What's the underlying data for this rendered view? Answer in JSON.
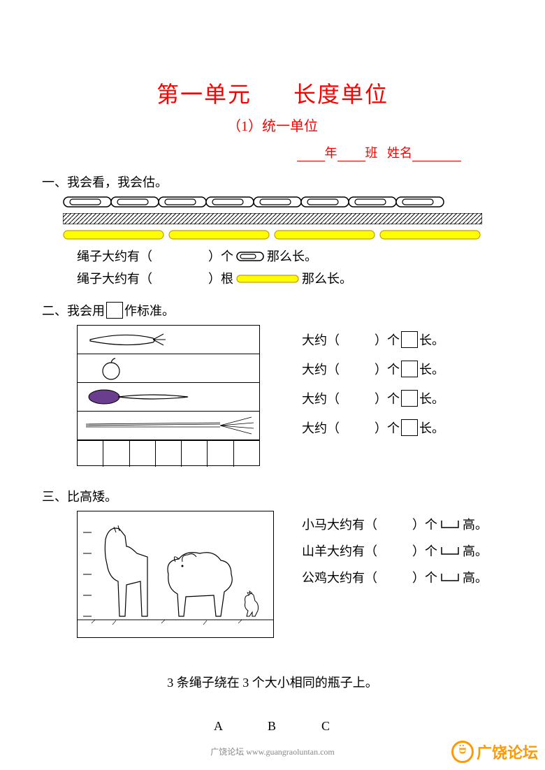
{
  "title_left": "第一单元",
  "title_right": "长度单位",
  "subtitle": "（1）统一单位",
  "name_line": {
    "year": "年",
    "class": "班",
    "name": "姓名"
  },
  "sections": {
    "s1": {
      "num": "一、",
      "title": "我会看，我会估。"
    },
    "s2": {
      "num": "二、",
      "title_pre": "我会用",
      "title_post": "作标准。"
    },
    "s3": {
      "num": "三、",
      "title": "比高矮。"
    }
  },
  "q1": {
    "clip_count": 8,
    "yellow_count": 4,
    "line1_pre": "绳子大约有（",
    "line1_mid": "）个",
    "line1_post": "那么长。",
    "line2_pre": "绳子大约有（",
    "line2_mid": "）根",
    "line2_post": "那么长。"
  },
  "q2": {
    "lines": [
      {
        "pre": "大约（",
        "mid": "）个",
        "post": "长。"
      },
      {
        "pre": "大约（",
        "mid": "）个",
        "post": "长。"
      },
      {
        "pre": "大约（",
        "mid": "）个",
        "post": "长。"
      },
      {
        "pre": "大约（",
        "mid": "）个",
        "post": "长。"
      }
    ],
    "ruler_cells": 7
  },
  "q3": {
    "lines": [
      {
        "pre": "小马大约有（",
        "mid": "）个",
        "post": "高。"
      },
      {
        "pre": "山羊大约有（",
        "mid": "）个",
        "post": "高。"
      },
      {
        "pre": "公鸡大约有（",
        "mid": "）个",
        "post": "高。"
      }
    ]
  },
  "bottom": "3 条绳子绕在 3 个大小相同的瓶子上。",
  "abc": {
    "a": "A",
    "b": "B",
    "c": "C"
  },
  "footer": "广饶论坛 www.guangraoluntan.com",
  "watermark": "广饶论坛",
  "colors": {
    "red": "#ff0000",
    "yellow_fill": "#ffff00",
    "yellow_stroke": "#cc9900",
    "black": "#000000",
    "orange": "#ff9900"
  }
}
